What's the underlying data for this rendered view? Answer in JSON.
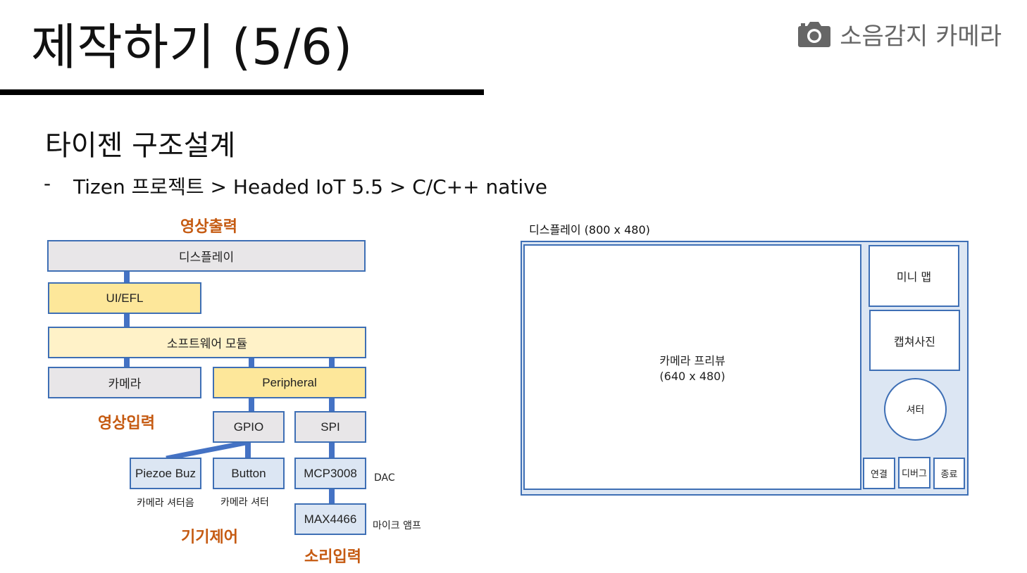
{
  "header": {
    "title": "제작하기 (5/6)",
    "brand_label": "소음감지 카메라",
    "brand_icon": "camera-icon"
  },
  "section": {
    "title": "타이젠 구조설계",
    "bullet_dash": "-",
    "bullet_text": "Tizen 프로젝트 > Headed IoT 5.5 > C/C++ native"
  },
  "architecture": {
    "label_video_out": "영상출력",
    "label_video_in": "영상입력",
    "label_device_control": "기기제어",
    "label_sound_in": "소리입력",
    "display": "디스플레이",
    "ui_efl": "UI/EFL",
    "software_module": "소프트웨어 모듈",
    "camera": "카메라",
    "peripheral": "Peripheral",
    "gpio": "GPIO",
    "spi": "SPI",
    "piezo": "Piezoe Buz",
    "button": "Button",
    "mcp3008": "MCP3008",
    "max4466": "MAX4466",
    "piezo_caption": "카메라 셔터음",
    "button_caption": "카메라 셔터",
    "dac_caption": "DAC",
    "mic_caption": "마이크 앰프"
  },
  "display_layout": {
    "title": "디스플레이 (800 x 480)",
    "preview_line1": "카메라 프리뷰",
    "preview_line2": "(640 x 480)",
    "mini_map": "미니 맵",
    "captured_photo": "캡쳐사진",
    "shutter": "셔터",
    "connect": "연결",
    "debug": "디버그",
    "exit": "종료"
  },
  "colors": {
    "accent_blue": "#4472c4",
    "label_orange": "#c55a11",
    "box_gray": "#e8e6e8",
    "box_yellow": "#fde79a",
    "box_lightyellow": "#fff2c8",
    "box_lightblue": "#dce6f3"
  }
}
